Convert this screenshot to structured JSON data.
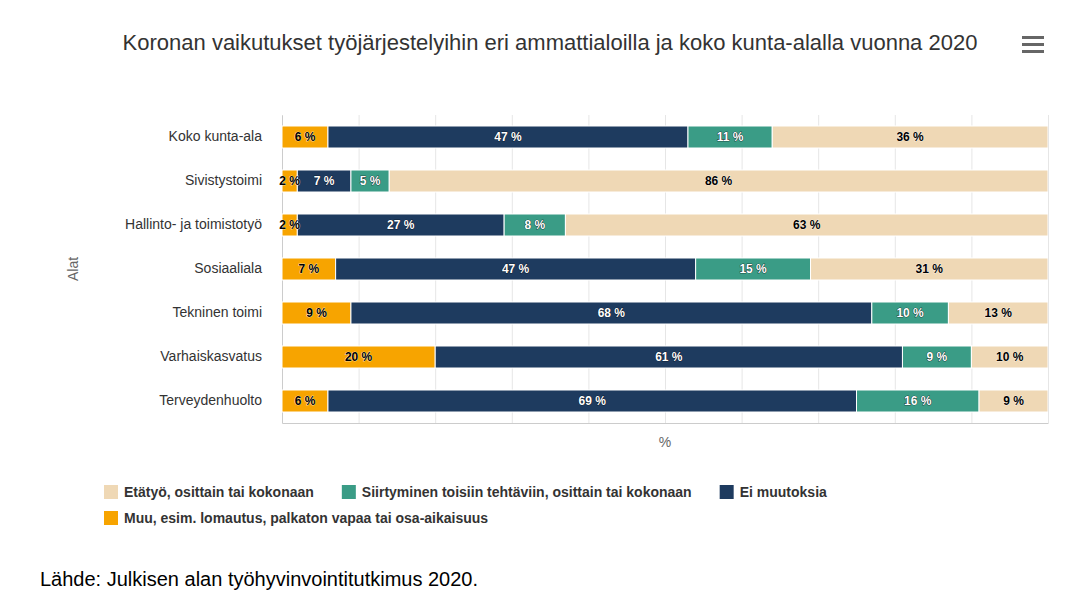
{
  "chart_data": {
    "type": "bar",
    "orientation": "horizontal",
    "stacked": true,
    "title": "Koronan vaikutukset työjärjestelyihin eri ammattialoilla ja koko kunta-alalla vuonna 2020",
    "source": "Lähde: Julkisen alan työhyvinvointitutkimus 2020.",
    "xlabel": "%",
    "ylabel": "Alat",
    "categories": [
      "Koko kunta-ala",
      "Sivistystoimi",
      "Hallinto- ja toimistotyö",
      "Sosiaaliala",
      "Tekninen toimi",
      "Varhaiskasvatus",
      "Terveydenhuolto"
    ],
    "series": [
      {
        "name": "Muu, esim. lomautus, palkaton vapaa tai osa-aikaisuus",
        "color": "#f7a400",
        "values": [
          6,
          2,
          2,
          7,
          9,
          20,
          6
        ],
        "value_labels": [
          "6 %",
          "2 %",
          "2 %",
          "7 %",
          "9 %",
          "20 %",
          "6 %"
        ]
      },
      {
        "name": "Ei muutoksia",
        "color": "#1e3b5f",
        "values": [
          47,
          7,
          27,
          47,
          68,
          61,
          69
        ],
        "value_labels": [
          "47 %",
          "7 %",
          "27 %",
          "47 %",
          "68 %",
          "61 %",
          "69 %"
        ]
      },
      {
        "name": "Siirtyminen toisiin tehtäviin, osittain tai kokonaan",
        "color": "#3a9c86",
        "values": [
          11,
          5,
          8,
          15,
          10,
          9,
          16
        ],
        "value_labels": [
          "11 %",
          "5 %",
          "8 %",
          "15 %",
          "10 %",
          "9 %",
          "16 %"
        ]
      },
      {
        "name": "Etätyö, osittain tai kokonaan",
        "color": "#efd8b5",
        "values": [
          36,
          86,
          63,
          31,
          13,
          10,
          9
        ],
        "value_labels": [
          "36 %",
          "86 %",
          "63 %",
          "31 %",
          "13 %",
          "10 %",
          "9 %"
        ]
      }
    ],
    "xlim": [
      0,
      100
    ],
    "xticks": [
      0,
      10,
      20,
      30,
      40,
      50,
      60,
      70,
      80,
      90,
      100
    ],
    "grid": true,
    "tick_labels": "y",
    "data_labels": true
  }
}
